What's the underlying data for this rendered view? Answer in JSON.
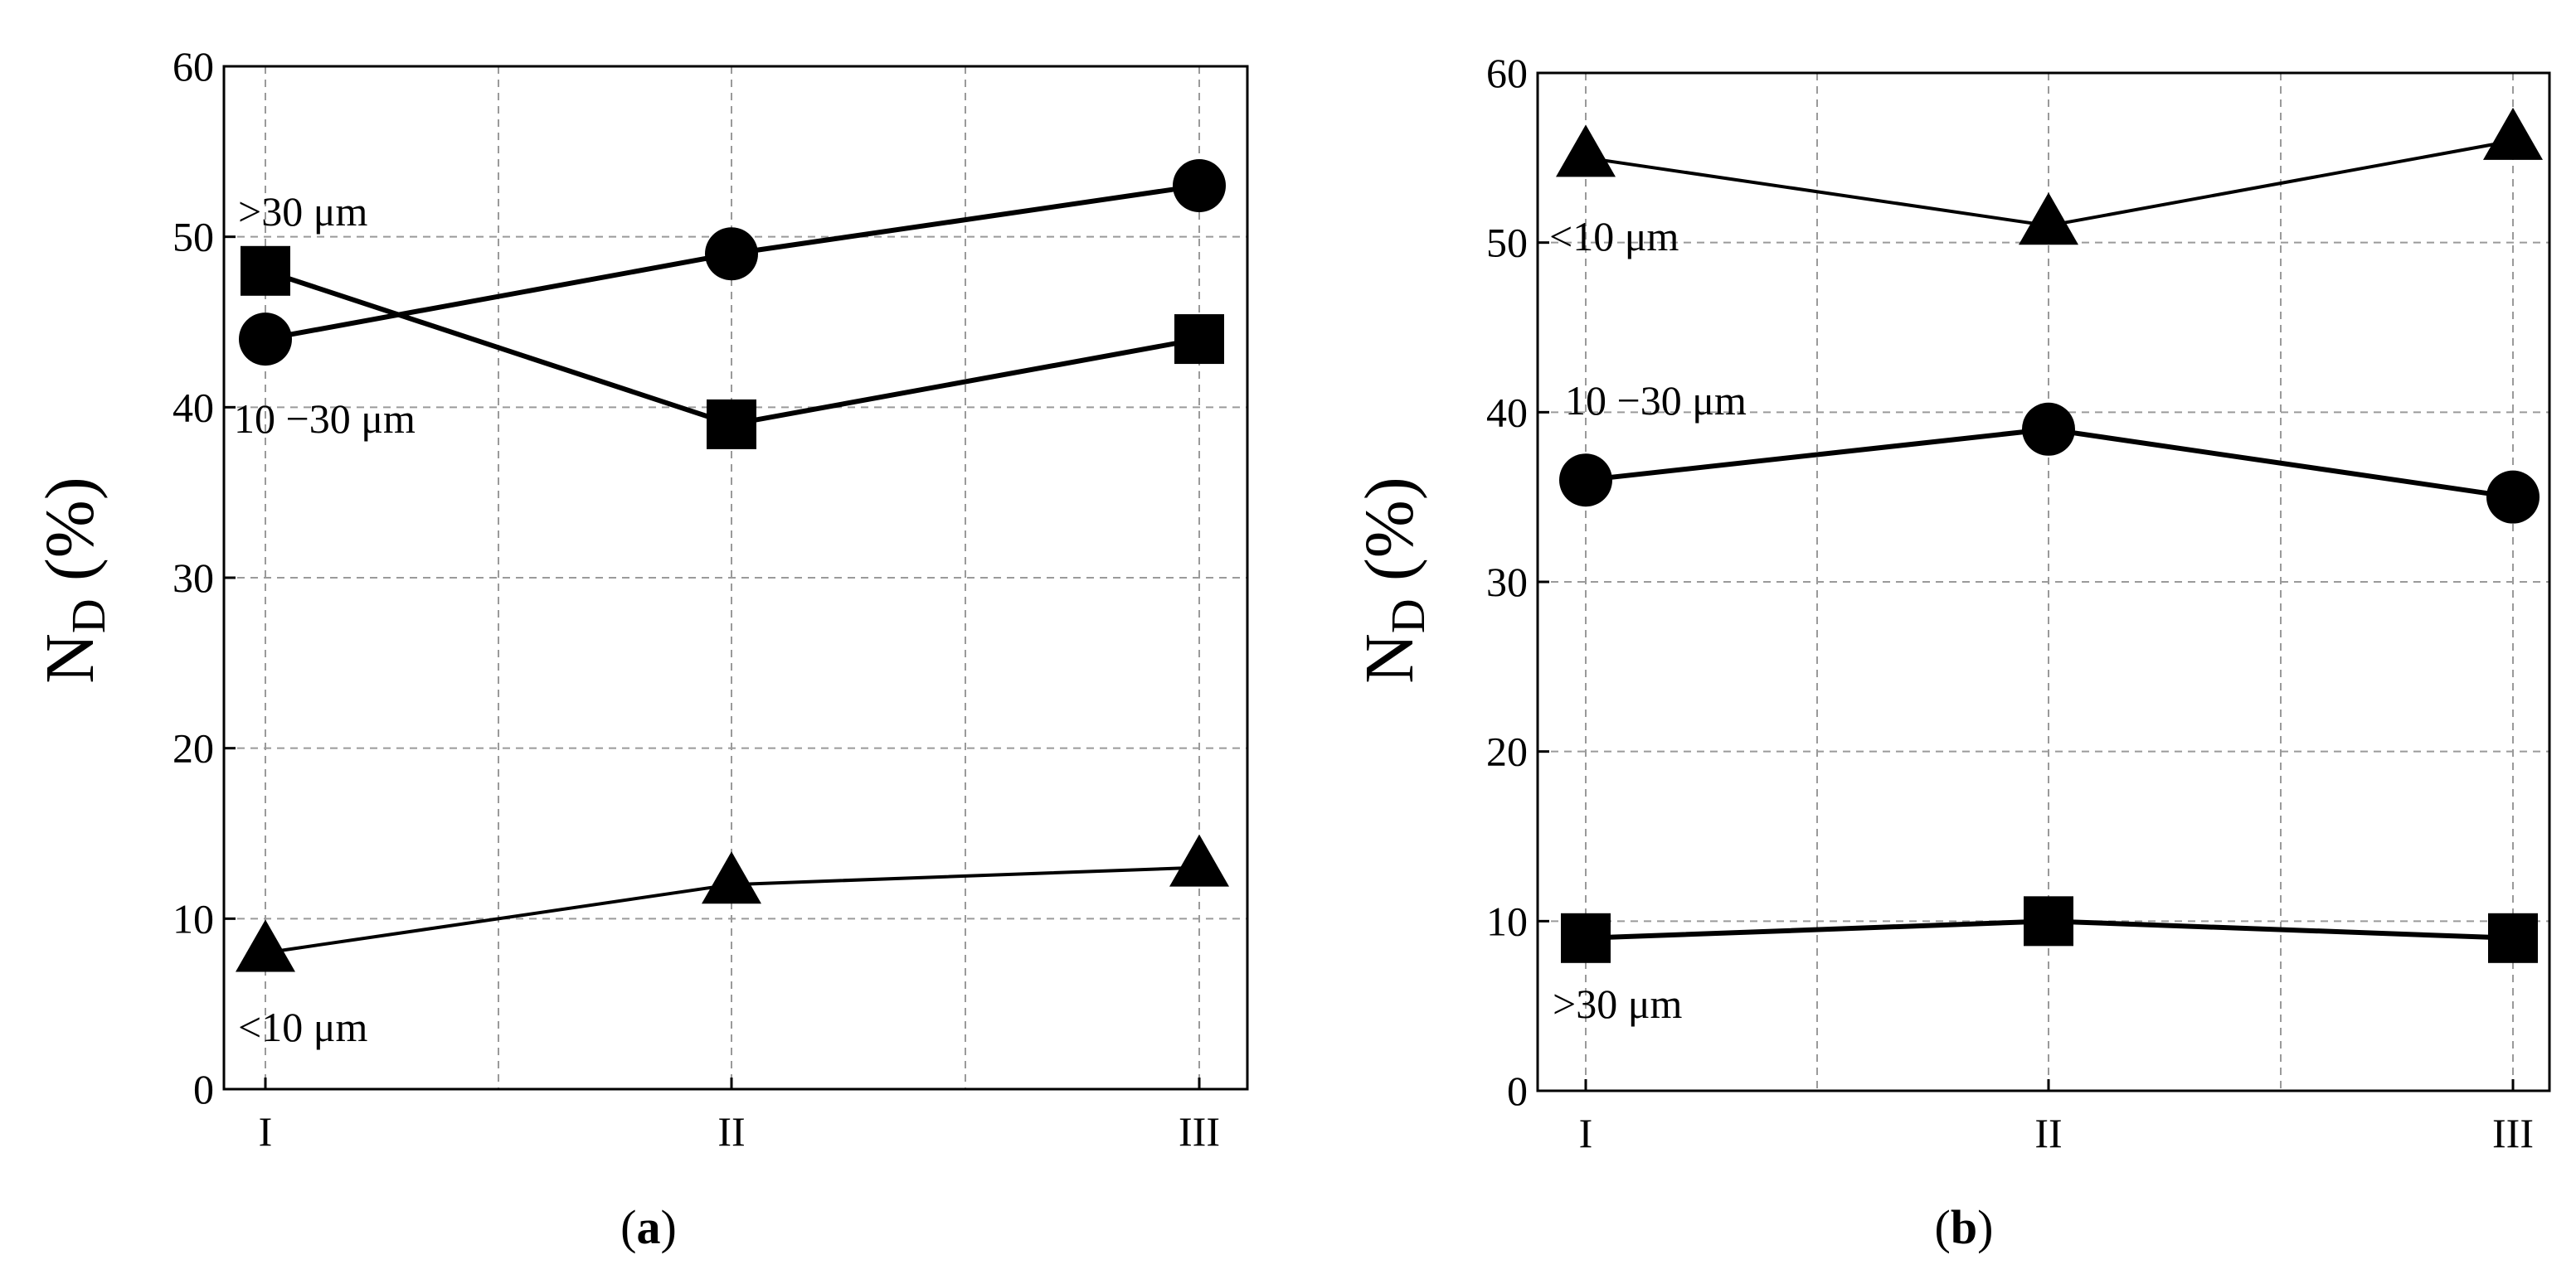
{
  "chart_data": [
    {
      "id": "a",
      "type": "line",
      "panel_label": "a",
      "categories": [
        "I",
        "II",
        "III"
      ],
      "ylabel_main": "N",
      "ylabel_sub": "D",
      "ylabel_tail": " (%)",
      "ylim": [
        0,
        60
      ],
      "yticks": [
        0,
        10,
        20,
        30,
        40,
        50,
        60
      ],
      "grid": true,
      "series": [
        {
          "name": ">30 μm",
          "marker": "square",
          "line": "thick",
          "values": [
            48,
            39,
            44
          ]
        },
        {
          "name": "10 −30 μm",
          "marker": "circle",
          "line": "thick",
          "values": [
            44,
            49,
            53
          ]
        },
        {
          "name": "<10 μm",
          "marker": "triangle",
          "line": "thin",
          "values": [
            8,
            12,
            13
          ]
        }
      ],
      "annotations": [
        ">30 μm",
        "10 −30 μm",
        "<10 μm"
      ]
    },
    {
      "id": "b",
      "type": "line",
      "panel_label": "b",
      "categories": [
        "I",
        "II",
        "III"
      ],
      "ylabel_main": "N",
      "ylabel_sub": "D",
      "ylabel_tail": " (%)",
      "ylim": [
        0,
        60
      ],
      "yticks": [
        0,
        10,
        20,
        30,
        40,
        50,
        60
      ],
      "grid": true,
      "series": [
        {
          "name": "<10 μm",
          "marker": "triangle",
          "line": "thin",
          "values": [
            55,
            51,
            56
          ]
        },
        {
          "name": "10 −30 μm",
          "marker": "circle",
          "line": "thick",
          "values": [
            36,
            39,
            35
          ]
        },
        {
          "name": ">30 μm",
          "marker": "square",
          "line": "thick",
          "values": [
            9,
            10,
            9
          ]
        }
      ],
      "annotations": [
        "<10 μm",
        "10 −30 μm",
        ">30 μm"
      ]
    }
  ]
}
